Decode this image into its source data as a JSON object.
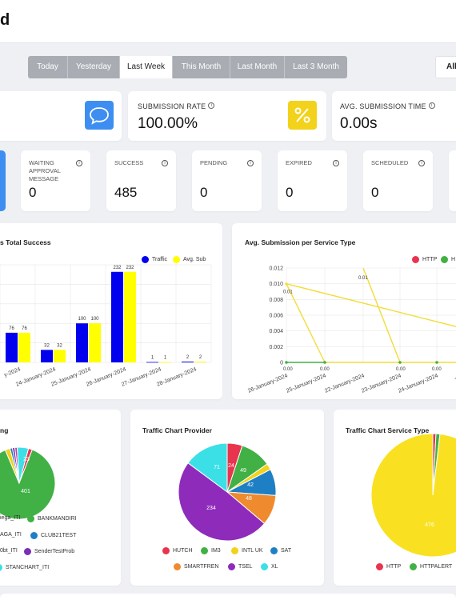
{
  "header": {
    "title": "d"
  },
  "range_buttons": [
    "Today",
    "Yesterday",
    "Last Week",
    "This Month",
    "Last Month",
    "Last 3 Month"
  ],
  "range_active": "Last Week",
  "all_button": "All",
  "stats": {
    "submission_rate": {
      "label": "SUBMISSION RATE",
      "value": "100.00%"
    },
    "avg_submission_time": {
      "label": "AVG. SUBMISSION TIME",
      "value": "0.00s"
    }
  },
  "status_cards": [
    {
      "label": "WAITING APPROVAL MESSAGE",
      "value": "0"
    },
    {
      "label": "SUCCESS",
      "value": "485"
    },
    {
      "label": "PENDING",
      "value": "0"
    },
    {
      "label": "EXPIRED",
      "value": "0"
    },
    {
      "label": "SCHEDULED",
      "value": "0"
    }
  ],
  "colors": {
    "accent_blue": "#3d8ef0",
    "accent_yellow": "#f2c94c",
    "traffic": "#0000ee",
    "avg_sub": "#ffff00"
  },
  "chart_data": [
    {
      "type": "bar",
      "title": "s Total Success",
      "categories": [
        "",
        "24-January-2024",
        "25-January-2024",
        "26-January-2024",
        "27-January-2024",
        "28-January-2024"
      ],
      "series": [
        {
          "name": "Traffic",
          "values": [
            76,
            32,
            100,
            232,
            1,
            2
          ]
        },
        {
          "name": "Avg. Sub",
          "values": [
            76,
            32,
            100,
            232,
            1,
            2
          ]
        }
      ],
      "x_tick_labels": [
        "y-2024",
        "24-January-2024",
        "25-January-2024",
        "26-January-2024",
        "27-January-2024",
        "28-January-2024"
      ],
      "ylim": [
        0,
        250
      ],
      "legend": "top-right"
    },
    {
      "type": "line",
      "title": "Avg. Submission per Service Type",
      "x": [
        "26-January-2024",
        "25-January-2024",
        "22-January-2024",
        "23-January-2024",
        "24-January-2024",
        "27-Ja"
      ],
      "series": [
        {
          "name": "HTTP",
          "values": [
            0,
            0,
            0,
            0,
            0,
            0
          ]
        },
        {
          "name": "H",
          "values": [
            0,
            0,
            null,
            null,
            null,
            null
          ]
        }
      ],
      "yellow_points": [
        0.01,
        0.0,
        0.01,
        0.0,
        0.0
      ],
      "y_tick_labels": [
        "0",
        "0.002",
        "0.004",
        "0.006",
        "0.008",
        "0.010",
        "0.012"
      ],
      "ylim": [
        0,
        0.012
      ],
      "data_labels": [
        "0.01",
        "0.01",
        "0.00",
        "0.00",
        "0.00",
        "0.00",
        "0.00"
      ],
      "legend": "top-right"
    },
    {
      "type": "pie",
      "title": "ng",
      "slices": [
        {
          "label": "iega_ITI",
          "value": 8,
          "color": "#e8344e"
        },
        {
          "label": "BANKMANDIRI",
          "value": 401,
          "color": "#41b045"
        },
        {
          "label": "AGA_ITI",
          "value": 10,
          "color": "#f2d21b"
        },
        {
          "label": "CLUB21TEST",
          "value": 5,
          "color": "#1e7fc4"
        },
        {
          "label": "0bt_ITI",
          "value": 5,
          "color": "#7a2fb4"
        },
        {
          "label": "SenderTestProb",
          "value": 5,
          "color": "#b8449e"
        },
        {
          "label": "STANCHART_ITI",
          "value": 23,
          "color": "#3be0e6"
        }
      ],
      "data_labels": [
        "401",
        "23"
      ]
    },
    {
      "type": "pie",
      "title": "Traffic Chart Provider",
      "slices": [
        {
          "label": "HUTCH",
          "value": 24,
          "color": "#e8344e"
        },
        {
          "label": "IM3",
          "value": 49,
          "color": "#41b045"
        },
        {
          "label": "INTL UK",
          "value": 10,
          "color": "#f2d21b"
        },
        {
          "label": "SAT",
          "value": 42,
          "color": "#1e7fc4"
        },
        {
          "label": "SMARTFREN",
          "value": 48,
          "color": "#f08a2f"
        },
        {
          "label": "TSEL",
          "value": 234,
          "color": "#8e2bbb"
        },
        {
          "label": "XL",
          "value": 71,
          "color": "#3be0e6"
        }
      ],
      "data_labels": [
        "24",
        "49",
        "42",
        "48",
        "234",
        "71"
      ]
    },
    {
      "type": "pie",
      "title": "Traffic Chart Service Type",
      "slices": [
        {
          "label": "HTTP",
          "value": 4,
          "color": "#e8344e"
        },
        {
          "label": "HTTPALERT",
          "value": 5,
          "color": "#41b045"
        },
        {
          "label": "",
          "value": 476,
          "color": "#f9e121"
        }
      ],
      "data_labels": [
        "476"
      ]
    }
  ]
}
